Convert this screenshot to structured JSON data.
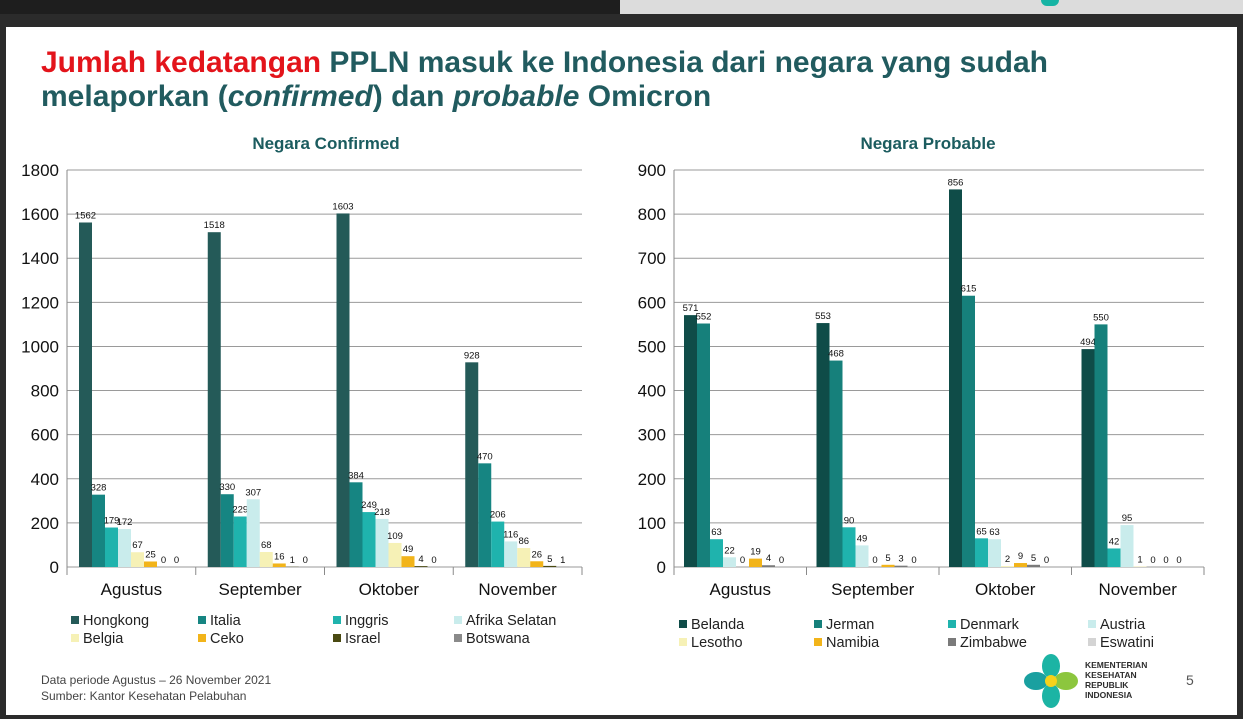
{
  "slide": {
    "title_red": "Jumlah kedatangan",
    "title_part1": " PPLN masuk ke Indonesia dari negara yang sudah melaporkan (",
    "title_italic1": "confirmed",
    "title_part2": ") dan ",
    "title_italic2": "probable",
    "title_part3": " Omicron",
    "footnote_line1": "Data periode Agustus – 26 November 2021",
    "footnote_line2": "Sumber: Kantor Kesehatan Pelabuhan",
    "page_number": "5",
    "logo_text": [
      "KEMENTERIAN",
      "KESEHATAN",
      "REPUBLIK",
      "INDONESIA"
    ]
  },
  "colors": {
    "title_teal": "#215b5f",
    "title_red": "#e3141b"
  },
  "chart_data": [
    {
      "type": "bar",
      "title": "Negara Confirmed",
      "categories": [
        "Agustus",
        "September",
        "Oktober",
        "November"
      ],
      "ylim": [
        0,
        1800
      ],
      "yticks": [
        0,
        200,
        400,
        600,
        800,
        1000,
        1200,
        1400,
        1600,
        1800
      ],
      "grid": true,
      "legend_position": "bottom",
      "series": [
        {
          "name": "Hongkong",
          "color": "#245a58",
          "values": [
            1562,
            1518,
            1603,
            928
          ]
        },
        {
          "name": "Italia",
          "color": "#168582",
          "values": [
            328,
            330,
            384,
            470
          ]
        },
        {
          "name": "Inggris",
          "color": "#1fb3ad",
          "values": [
            179,
            229,
            249,
            206
          ]
        },
        {
          "name": "Afrika Selatan",
          "color": "#c9ecec",
          "values": [
            172,
            307,
            218,
            116
          ]
        },
        {
          "name": "Belgia",
          "color": "#f6f1b6",
          "values": [
            67,
            68,
            109,
            86
          ]
        },
        {
          "name": "Ceko",
          "color": "#f2b41a",
          "values": [
            25,
            16,
            49,
            26
          ]
        },
        {
          "name": "Israel",
          "color": "#4a4a12",
          "values": [
            0,
            1,
            4,
            5
          ]
        },
        {
          "name": "Botswana",
          "color": "#8a8a8a",
          "values": [
            0,
            0,
            0,
            1
          ]
        }
      ]
    },
    {
      "type": "bar",
      "title": "Negara Probable",
      "categories": [
        "Agustus",
        "September",
        "Oktober",
        "November"
      ],
      "ylim": [
        0,
        900
      ],
      "yticks": [
        0,
        100,
        200,
        300,
        400,
        500,
        600,
        700,
        800,
        900
      ],
      "grid": true,
      "legend_position": "bottom",
      "series": [
        {
          "name": "Belanda",
          "color": "#0f4c48",
          "values": [
            571,
            553,
            856,
            494
          ]
        },
        {
          "name": "Jerman",
          "color": "#16807b",
          "values": [
            552,
            468,
            615,
            550
          ]
        },
        {
          "name": "Denmark",
          "color": "#1fb3ad",
          "values": [
            63,
            90,
            65,
            42
          ]
        },
        {
          "name": "Austria",
          "color": "#c9ecec",
          "values": [
            22,
            49,
            63,
            95
          ]
        },
        {
          "name": "Lesotho",
          "color": "#f6f1b6",
          "values": [
            0,
            0,
            2,
            1
          ]
        },
        {
          "name": "Namibia",
          "color": "#f2b41a",
          "values": [
            19,
            5,
            9,
            0
          ]
        },
        {
          "name": "Zimbabwe",
          "color": "#7a7a7a",
          "values": [
            4,
            3,
            5,
            0
          ]
        },
        {
          "name": "Eswatini",
          "color": "#d4d4d4",
          "values": [
            0,
            0,
            0,
            0
          ]
        }
      ]
    }
  ]
}
